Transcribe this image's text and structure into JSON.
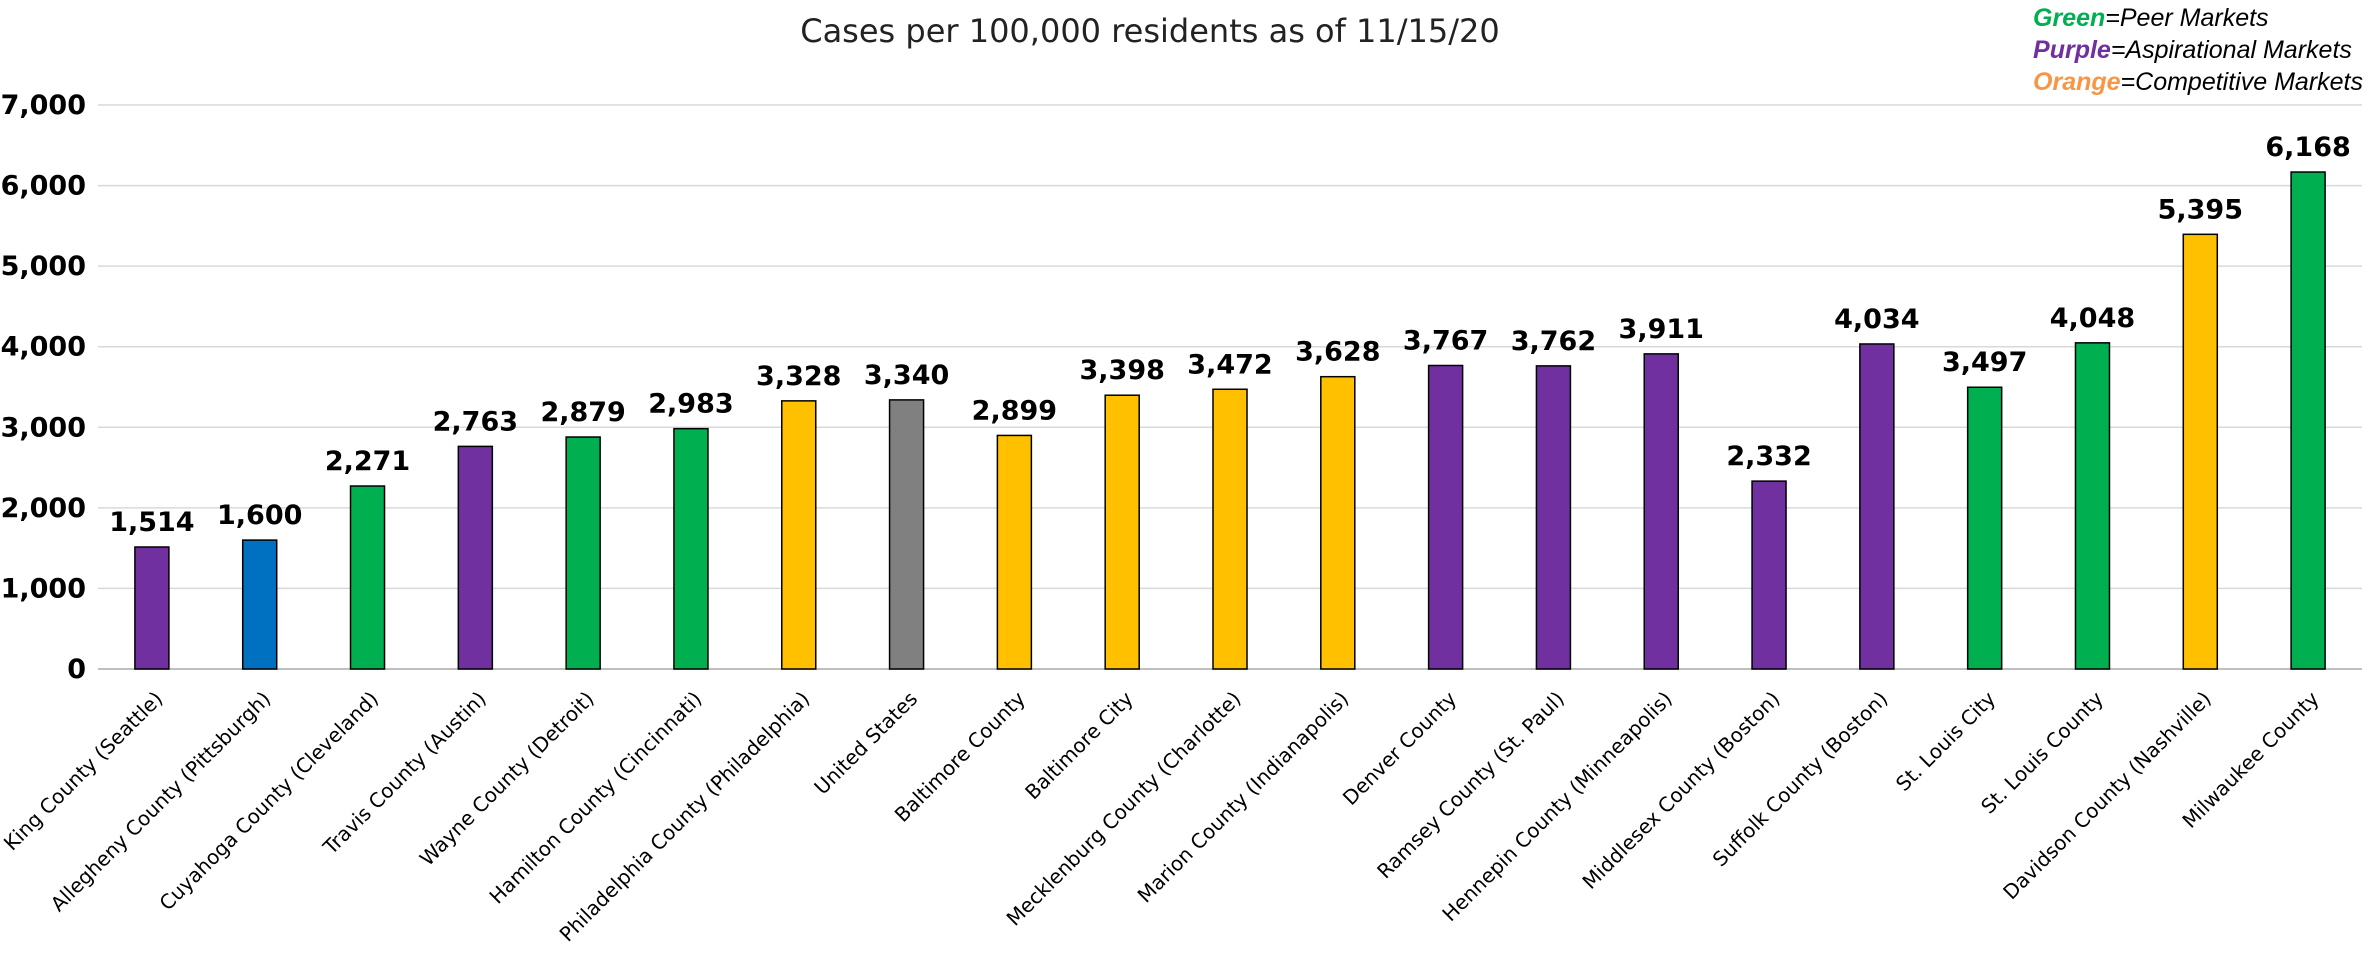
{
  "chart_data": {
    "type": "bar",
    "title": "Cases per 100,000 residents as of 11/15/20",
    "xlabel": "",
    "ylabel": "",
    "ylim": [
      0,
      7000
    ],
    "yticks": [
      0,
      1000,
      2000,
      3000,
      4000,
      5000,
      6000,
      7000
    ],
    "ytick_labels": [
      "0",
      "1,000",
      "2,000",
      "3,000",
      "4,000",
      "5,000",
      "6,000",
      "7,000"
    ],
    "grid": true,
    "legend_position": "top-right",
    "legend": [
      {
        "key": "Green",
        "text": "=Peer Markets",
        "color": "#00B050"
      },
      {
        "key": "Purple",
        "text": "=Aspirational Markets",
        "color": "#7030A0"
      },
      {
        "key": "Orange",
        "text": "=Competitive Markets",
        "color": "#F79646"
      }
    ],
    "categories": [
      "King County (Seattle)",
      "Allegheny County (Pittsburgh)",
      "Cuyahoga County (Cleveland)",
      "Travis County (Austin)",
      "Wayne County (Detroit)",
      "Hamilton County (Cincinnati)",
      "Philadelphia County (Philadelphia)",
      "United States",
      "Baltimore County",
      "Baltimore City",
      "Mecklenburg County (Charlotte)",
      "Marion County (Indianapolis)",
      "Denver County",
      "Ramsey County (St. Paul)",
      "Hennepin County (Minneapolis)",
      "Middlesex County (Boston)",
      "Suffolk County (Boston)",
      "St. Louis City",
      "St. Louis County",
      "Davidson County (Nashville)",
      "Milwaukee County"
    ],
    "values": [
      1514,
      1600,
      2271,
      2763,
      2879,
      2983,
      3328,
      3340,
      2899,
      3398,
      3472,
      3628,
      3767,
      3762,
      3911,
      2332,
      4034,
      3497,
      4048,
      5395,
      6168
    ],
    "value_labels": [
      "1,514",
      "1,600",
      "2,271",
      "2,763",
      "2,879",
      "2,983",
      "3,328",
      "3,340",
      "2,899",
      "3,398",
      "3,472",
      "3,628",
      "3,767",
      "3,762",
      "3,911",
      "2,332",
      "4,034",
      "3,497",
      "4,048",
      "5,395",
      "6,168"
    ],
    "bar_colors": [
      "#7030A0",
      "#0070C0",
      "#00B050",
      "#7030A0",
      "#00B050",
      "#00B050",
      "#FFC000",
      "#808080",
      "#FFC000",
      "#FFC000",
      "#FFC000",
      "#FFC000",
      "#7030A0",
      "#7030A0",
      "#7030A0",
      "#7030A0",
      "#7030A0",
      "#00B050",
      "#00B050",
      "#FFC000",
      "#00B050"
    ]
  }
}
